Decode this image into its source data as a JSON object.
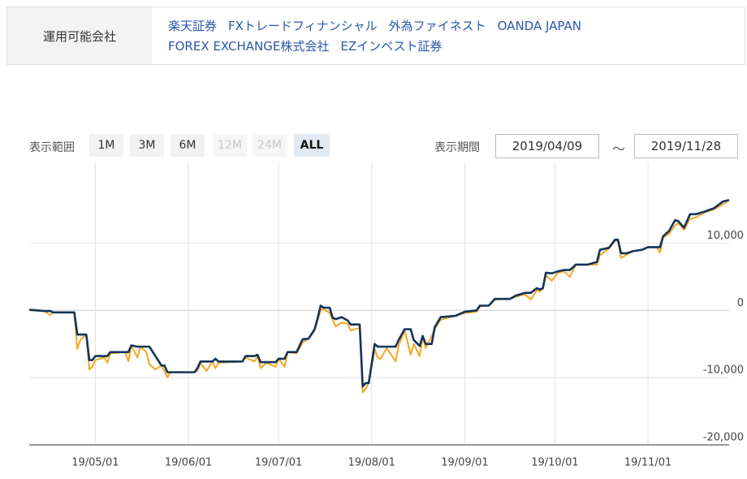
{
  "header": {
    "label": "運用可能会社",
    "companies": [
      [
        "楽天証券",
        "FXトレードフィナンシャル",
        "外為ファイネスト",
        "OANDA JAPAN"
      ],
      [
        "FOREX EXCHANGE株式会社",
        "EZインベスト証券"
      ]
    ]
  },
  "controls": {
    "range_label": "表示範囲",
    "ranges": [
      {
        "label": "1M",
        "enabled": true,
        "active": false
      },
      {
        "label": "3M",
        "enabled": true,
        "active": false
      },
      {
        "label": "6M",
        "enabled": true,
        "active": false
      },
      {
        "label": "12M",
        "enabled": false,
        "active": false
      },
      {
        "label": "24M",
        "enabled": false,
        "active": false
      },
      {
        "label": "ALL",
        "enabled": true,
        "active": true
      }
    ],
    "period_label": "表示期間",
    "start": "2019/04/09",
    "separator": "〜",
    "end": "2019/11/28"
  },
  "chart_data": {
    "type": "line",
    "x": [
      "19/04/09",
      "19/04/14",
      "19/04/16",
      "19/04/17",
      "19/04/24",
      "19/04/25",
      "19/04/26",
      "19/04/28",
      "19/04/29",
      "19/04/30",
      "19/05/01",
      "19/05/04",
      "19/05/05",
      "19/05/06",
      "19/05/11",
      "19/05/12",
      "19/05/13",
      "19/05/15",
      "19/05/16",
      "19/05/18",
      "19/05/19",
      "19/05/21",
      "19/05/23",
      "19/05/24",
      "19/05/25",
      "19/05/26",
      "19/06/03",
      "19/06/04",
      "19/06/05",
      "19/06/07",
      "19/06/09",
      "19/06/10",
      "19/06/11",
      "19/06/19",
      "19/06/20",
      "19/06/23",
      "19/06/24",
      "19/06/25",
      "19/06/27",
      "19/06/30",
      "19/07/01",
      "19/07/03",
      "19/07/04",
      "19/07/07",
      "19/07/09",
      "19/07/11",
      "19/07/13",
      "19/07/14",
      "19/07/15",
      "19/07/16",
      "19/07/18",
      "19/07/19",
      "19/07/20",
      "19/07/22",
      "19/07/24",
      "19/07/25",
      "19/07/28",
      "19/07/29",
      "19/07/30",
      "19/07/31",
      "19/08/02",
      "19/08/03",
      "19/08/04",
      "19/08/06",
      "19/08/09",
      "19/08/10",
      "19/08/12",
      "19/08/14",
      "19/08/15",
      "19/08/17",
      "19/08/18",
      "19/08/19",
      "19/08/21",
      "19/08/22",
      "19/08/24",
      "19/08/27",
      "19/08/29",
      "19/09/01",
      "19/09/05",
      "19/09/06",
      "19/09/09",
      "19/09/11",
      "19/09/16",
      "19/09/18",
      "19/09/21",
      "19/09/23",
      "19/09/25",
      "19/09/26",
      "19/09/27",
      "19/09/28",
      "19/09/30",
      "19/10/02",
      "19/10/04",
      "19/10/06",
      "19/10/08",
      "19/10/12",
      "19/10/15",
      "19/10/16",
      "19/10/19",
      "19/10/21",
      "19/10/22",
      "19/10/23",
      "19/10/25",
      "19/10/27",
      "19/10/30",
      "19/11/01",
      "19/11/04",
      "19/11/05",
      "19/11/06",
      "19/11/08",
      "19/11/10",
      "19/11/11",
      "19/11/13",
      "19/11/15",
      "19/11/17",
      "19/11/20",
      "19/11/23",
      "19/11/26",
      "19/11/28"
    ],
    "series": [
      {
        "color": "#f5a623",
        "width": 2,
        "values": [
          0,
          -100,
          -700,
          -300,
          -300,
          -5700,
          -4400,
          -3600,
          -8800,
          -8400,
          -7400,
          -7000,
          -7800,
          -6400,
          -6200,
          -7600,
          -5200,
          -7000,
          -5400,
          -6200,
          -8000,
          -8800,
          -8200,
          -9000,
          -10000,
          -9200,
          -9200,
          -9000,
          -7800,
          -9000,
          -7600,
          -8600,
          -7800,
          -7600,
          -7000,
          -7600,
          -6800,
          -8600,
          -7800,
          -8400,
          -7200,
          -8400,
          -6200,
          -6400,
          -4800,
          -4200,
          -3000,
          -1400,
          0,
          200,
          -400,
          -1400,
          -2400,
          -1800,
          -2000,
          -3000,
          -2600,
          -12200,
          -11600,
          -10800,
          -5800,
          -7000,
          -7200,
          -5600,
          -7600,
          -5200,
          -3000,
          -6600,
          -5000,
          -6800,
          -4000,
          -5600,
          -3800,
          -2800,
          -1400,
          -1000,
          -800,
          -400,
          -200,
          600,
          700,
          1600,
          1700,
          2000,
          2400,
          1600,
          3000,
          2800,
          3200,
          5200,
          4400,
          5600,
          5800,
          5000,
          6800,
          6800,
          6800,
          8200,
          9200,
          10300,
          10400,
          7800,
          8300,
          8800,
          9000,
          9400,
          9400,
          8600,
          10800,
          11400,
          12600,
          13000,
          12000,
          13600,
          13800,
          14600,
          15000,
          15800,
          16400
        ]
      },
      {
        "color": "#12345a",
        "width": 2.6,
        "values": [
          100,
          -100,
          -100,
          -300,
          -300,
          -3600,
          -3600,
          -3600,
          -7400,
          -7400,
          -6800,
          -6800,
          -6800,
          -6200,
          -6200,
          -6200,
          -5200,
          -5400,
          -5400,
          -5400,
          -5400,
          -6800,
          -8200,
          -8200,
          -9200,
          -9200,
          -9200,
          -8600,
          -7600,
          -7600,
          -7600,
          -7200,
          -7600,
          -7600,
          -6800,
          -6800,
          -6600,
          -7700,
          -7700,
          -7700,
          -7200,
          -7200,
          -6200,
          -6200,
          -4300,
          -4200,
          -2800,
          -1200,
          700,
          400,
          400,
          -1100,
          -1300,
          -1000,
          -1500,
          -2100,
          -2100,
          -11300,
          -10800,
          -10800,
          -5000,
          -5400,
          -5400,
          -5400,
          -5400,
          -4400,
          -2800,
          -2800,
          -4400,
          -5300,
          -3800,
          -5000,
          -5000,
          -2500,
          -1000,
          -900,
          -800,
          -200,
          0,
          700,
          700,
          1700,
          1700,
          2200,
          2600,
          2600,
          3300,
          3100,
          3300,
          5600,
          5500,
          5800,
          6000,
          6000,
          6800,
          6800,
          7200,
          9000,
          9300,
          10500,
          10500,
          8500,
          8500,
          8800,
          9000,
          9400,
          9400,
          9400,
          11000,
          11800,
          13400,
          13300,
          12300,
          14300,
          14300,
          14700,
          15200,
          16200,
          16400
        ]
      }
    ],
    "xlim": [
      "19/04/09",
      "19/11/28"
    ],
    "xticks": [
      "19/05/01",
      "19/06/01",
      "19/07/01",
      "19/08/01",
      "19/09/01",
      "19/10/01",
      "19/11/01"
    ],
    "ylim": [
      -20000,
      22000
    ],
    "yticks": [
      {
        "value": -20000,
        "label": "-20,000"
      },
      {
        "value": -10000,
        "label": "-10,000"
      },
      0,
      {
        "value": 10000,
        "label": "10,000"
      }
    ],
    "grid": true
  }
}
